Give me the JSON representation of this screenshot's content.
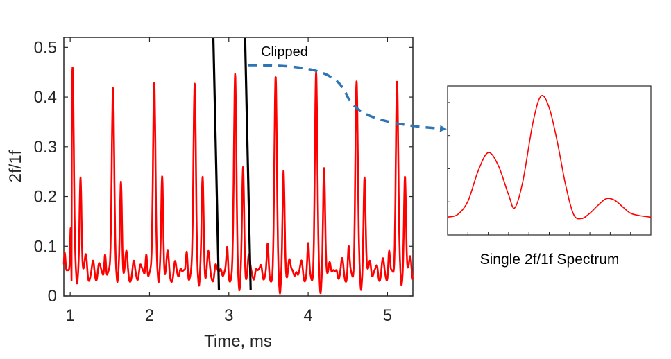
{
  "chart_data": [
    {
      "type": "line",
      "xlabel": "Time, ms",
      "ylabel": "2f/1f",
      "xlim": [
        0.92,
        5.32
      ],
      "ylim": [
        0,
        0.52
      ],
      "xticks": [
        1,
        2,
        3,
        4,
        5
      ],
      "xtick_labels": [
        "1",
        "2",
        "3",
        "4",
        "5"
      ],
      "yticks": [
        0,
        0.1,
        0.2,
        0.3,
        0.4,
        0.5
      ],
      "ytick_labels": [
        "0",
        "0.1",
        "0.2",
        "0.3",
        "0.4",
        "0.5"
      ],
      "grid": false,
      "series": [
        {
          "color": "#ff0000",
          "peak_times": [
            1.03,
            1.54,
            2.06,
            2.57,
            3.08,
            3.59,
            4.1,
            4.61,
            5.12
          ],
          "peak_values": [
            0.47,
            0.43,
            0.44,
            0.43,
            0.44,
            0.43,
            0.44,
            0.43,
            0.44
          ],
          "side_peak_values": [
            0.25,
            0.24,
            0.25,
            0.24,
            0.25,
            0.24,
            0.25,
            0.24,
            0.25
          ],
          "baseline": 0.04
        }
      ],
      "annotations": [
        {
          "type": "vertical_line",
          "x": 2.84,
          "color": "#000000"
        },
        {
          "type": "vertical_line",
          "x": 3.24,
          "color": "#000000"
        },
        {
          "type": "text",
          "text": "Clipped",
          "x": 3.25,
          "y": 0.5
        }
      ]
    },
    {
      "type": "line",
      "caption": "Single 2f/1f Spectrum",
      "xticks_labeled": false,
      "yticks_labeled": false,
      "series": [
        {
          "color": "#ff0000",
          "x": [
            0,
            0.05,
            0.1,
            0.15,
            0.2,
            0.25,
            0.3,
            0.33,
            0.37,
            0.42,
            0.46,
            0.5,
            0.54,
            0.58,
            0.62,
            0.66,
            0.7,
            0.74,
            0.78,
            0.82,
            0.86,
            0.9,
            0.95,
            1.0
          ],
          "y": [
            0.03,
            0.05,
            0.15,
            0.38,
            0.52,
            0.42,
            0.2,
            0.1,
            0.3,
            0.75,
            0.95,
            0.86,
            0.6,
            0.28,
            0.05,
            0.02,
            0.06,
            0.12,
            0.17,
            0.16,
            0.11,
            0.06,
            0.04,
            0.03
          ]
        }
      ]
    }
  ],
  "connector": {
    "color": "#2e75b6",
    "style": "dashed",
    "arrow": true
  }
}
